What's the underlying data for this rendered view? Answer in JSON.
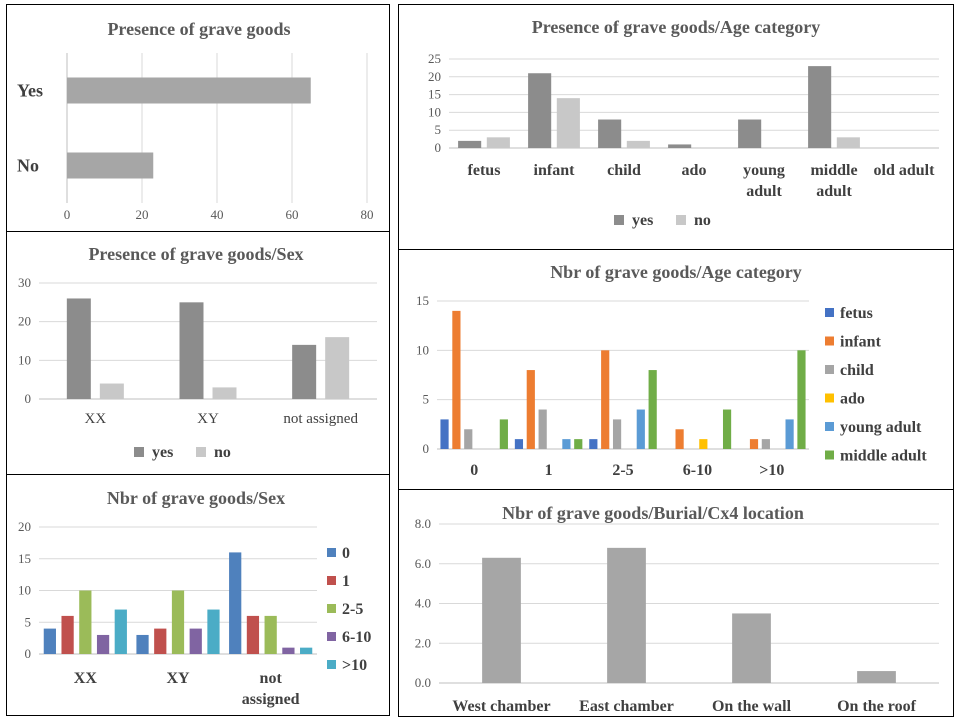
{
  "chart_data": [
    {
      "id": "c1",
      "type": "bar",
      "orientation": "horizontal",
      "title": "Presence of grave goods",
      "categories": [
        "Yes",
        "No"
      ],
      "values": [
        65,
        23
      ],
      "ticks": [
        0,
        20,
        40,
        60,
        80
      ],
      "xlim": [
        0,
        80
      ],
      "grid": true,
      "color": "#a6a6a6"
    },
    {
      "id": "c2",
      "type": "bar",
      "title": "Presence of grave goods/Age category",
      "categories": [
        [
          "fetus"
        ],
        [
          "infant"
        ],
        [
          "child"
        ],
        [
          "ado"
        ],
        [
          "young",
          "adult"
        ],
        [
          "middle",
          "adult"
        ],
        [
          "old adult"
        ]
      ],
      "series": [
        {
          "name": "yes",
          "color": "#8c8c8c",
          "values": [
            2,
            21,
            8,
            1,
            8,
            23,
            0
          ]
        },
        {
          "name": "no",
          "color": "#c8c8c8",
          "values": [
            3,
            14,
            2,
            0,
            0,
            3,
            0
          ]
        }
      ],
      "ticks": [
        0,
        5,
        10,
        15,
        20,
        25
      ],
      "ylim": [
        0,
        25
      ],
      "grid": true,
      "legend": "bottom"
    },
    {
      "id": "c3",
      "type": "bar",
      "title": "Presence of grave goods/Sex",
      "categories": [
        [
          "XX"
        ],
        [
          "XY"
        ],
        [
          "not assigned"
        ]
      ],
      "series": [
        {
          "name": "yes",
          "color": "#8c8c8c",
          "values": [
            26,
            25,
            14
          ]
        },
        {
          "name": "no",
          "color": "#c8c8c8",
          "values": [
            4,
            3,
            16
          ]
        }
      ],
      "ticks": [
        0,
        10,
        20,
        30
      ],
      "ylim": [
        0,
        30
      ],
      "grid": true,
      "legend": "bottom"
    },
    {
      "id": "c4",
      "type": "bar",
      "title": "Nbr  of grave goods/Age category",
      "categories": [
        [
          "0"
        ],
        [
          "1"
        ],
        [
          "2-5"
        ],
        [
          "6-10"
        ],
        [
          ">10"
        ]
      ],
      "series": [
        {
          "name": "fetus",
          "color": "#4472c4",
          "values": [
            3,
            1,
            1,
            0,
            0
          ]
        },
        {
          "name": "infant",
          "color": "#ed7d31",
          "values": [
            14,
            8,
            10,
            2,
            1
          ]
        },
        {
          "name": "child",
          "color": "#a5a5a5",
          "values": [
            2,
            4,
            3,
            0,
            1
          ]
        },
        {
          "name": "ado",
          "color": "#ffc000",
          "values": [
            0,
            0,
            0,
            1,
            0
          ]
        },
        {
          "name": "young adult",
          "color": "#5b9bd5",
          "values": [
            0,
            1,
            4,
            0,
            3
          ]
        },
        {
          "name": "middle adult",
          "color": "#70ad47",
          "values": [
            3,
            1,
            8,
            4,
            10
          ]
        }
      ],
      "ticks": [
        0,
        5,
        10,
        15
      ],
      "ylim": [
        0,
        15
      ],
      "grid": true,
      "legend": "right"
    },
    {
      "id": "c5",
      "type": "bar",
      "title": "Nbr  of grave goods/Sex",
      "categories": [
        [
          "XX"
        ],
        [
          "XY"
        ],
        [
          "not",
          "assigned"
        ]
      ],
      "series": [
        {
          "name": "0",
          "color": "#4f81bd",
          "values": [
            4,
            3,
            16
          ]
        },
        {
          "name": "1",
          "color": "#c0504d",
          "values": [
            6,
            4,
            6
          ]
        },
        {
          "name": "2-5",
          "color": "#9bbb59",
          "values": [
            10,
            10,
            6
          ]
        },
        {
          "name": "6-10",
          "color": "#8064a2",
          "values": [
            3,
            4,
            1
          ]
        },
        {
          "name": ">10",
          "color": "#4bacc6",
          "values": [
            7,
            7,
            1
          ]
        }
      ],
      "ticks": [
        0,
        5,
        10,
        15,
        20
      ],
      "ylim": [
        0,
        20
      ],
      "grid": true,
      "legend": "right"
    },
    {
      "id": "c6",
      "type": "bar",
      "title": "Nbr  of grave goods/Burial/Cx4  location",
      "categories": [
        [
          "West chamber"
        ],
        [
          "East chamber"
        ],
        [
          "On the wall"
        ],
        [
          "On the roof"
        ]
      ],
      "values": [
        6.3,
        6.8,
        3.5,
        0.6
      ],
      "color": "#a6a6a6",
      "ticks": [
        "0.0",
        "2.0",
        "4.0",
        "6.0",
        "8.0"
      ],
      "ylim": [
        0,
        8
      ],
      "grid": true
    }
  ]
}
